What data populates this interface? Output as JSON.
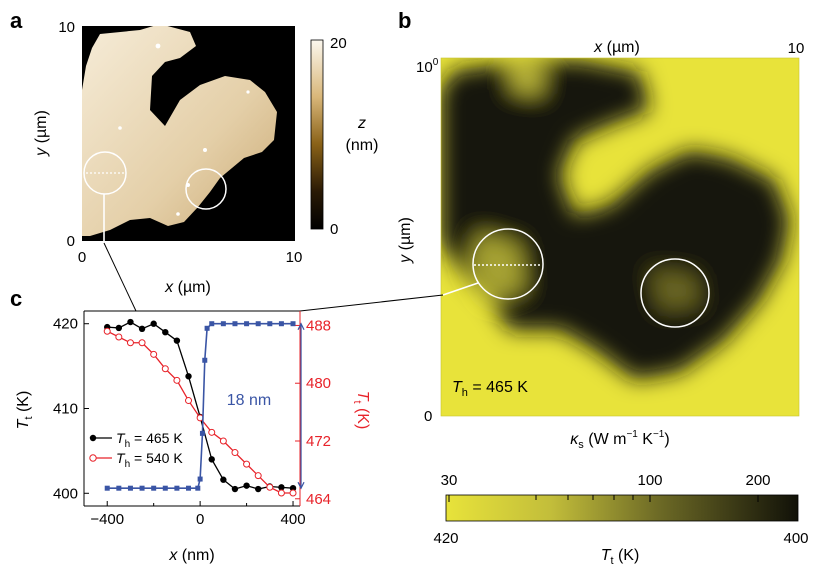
{
  "panel_a": {
    "label": "a",
    "x_ticks": [
      "0",
      "10"
    ],
    "y_ticks": [
      "0",
      "10"
    ],
    "x_axis_var": "x",
    "x_axis_unit": "(µm)",
    "y_axis_var": "y",
    "y_axis_unit": "(µm)",
    "colorbar_ticks": [
      "20",
      "0"
    ],
    "colorbar_var": "z",
    "colorbar_unit": "(nm)"
  },
  "panel_b": {
    "label": "b",
    "x_axis_var": "x",
    "x_axis_unit": "(µm)",
    "x_tick_right": "10",
    "y_tick_top_base": "10",
    "y_tick_top_exp": "0",
    "y_tick_bottom": "0",
    "y_axis_var": "y",
    "y_axis_unit": "(µm)",
    "annotation_var": "T",
    "annotation_sub": "h",
    "annotation_value": " = 465 K",
    "kappa_var": "κ",
    "kappa_sub": "s",
    "kappa_unit": "(W m",
    "kappa_unit_exp1": "−1",
    "kappa_unit_mid": " K",
    "kappa_unit_exp2": "−1",
    "kappa_unit_end": ")",
    "kappa_ticks": [
      "30",
      "100",
      "200"
    ],
    "tt_ticks": [
      "420",
      "400"
    ],
    "tt_var": "T",
    "tt_sub": "t",
    "tt_unit": " (K)",
    "colors": {
      "high": "#e8e33a",
      "low": "#111108"
    }
  },
  "panel_c": {
    "label": "c",
    "step_annotation": "18 nm",
    "left_axis_var": "T",
    "left_axis_sub": "t",
    "left_axis_unit": " (K)",
    "right_axis_var": "T",
    "right_axis_sub": "t",
    "right_axis_unit": " (K)",
    "x_axis_var": "x",
    "x_axis_unit": " (nm)",
    "legend": [
      {
        "var": "T",
        "sub": "h",
        "value": " = 465 K",
        "color": "#000000"
      },
      {
        "var": "T",
        "sub": "h",
        "value": " = 540 K",
        "color": "#e8232a"
      }
    ]
  },
  "chart_data": {
    "type": "line",
    "x": [
      -400,
      -350,
      -300,
      -250,
      -200,
      -150,
      -100,
      -50,
      0,
      50,
      100,
      150,
      200,
      250,
      300,
      350,
      400
    ],
    "xlim": [
      -500,
      430
    ],
    "x_ticks": [
      "−400",
      "0",
      "400"
    ],
    "ylim": [
      398.5,
      421.5
    ],
    "y_ticks": [
      "400",
      "410",
      "420"
    ],
    "y2lim": [
      463,
      490
    ],
    "y2_ticks": [
      "464",
      "472",
      "480",
      "488"
    ],
    "xlabel": "x (nm)",
    "ylabel": "Tt (K)",
    "y2label": "Tt (K)",
    "series": [
      {
        "name": "Th = 465 K",
        "axis": "left",
        "color": "#000000",
        "marker": "circle-filled",
        "values": [
          419.6,
          419.5,
          420.2,
          419.4,
          420.0,
          419.0,
          418.0,
          413.8,
          409.0,
          404.0,
          401.6,
          400.5,
          400.9,
          400.5,
          400.8,
          400.7,
          400.6
        ]
      },
      {
        "name": "Th = 540 K",
        "axis": "right",
        "color": "#e8232a",
        "marker": "circle-open",
        "values": [
          487.2,
          486.4,
          485.6,
          485.6,
          484.0,
          482.0,
          480.4,
          477.6,
          475.2,
          473.2,
          472.0,
          470.4,
          468.8,
          467.2,
          465.6,
          464.8,
          464.8
        ]
      },
      {
        "name": "",
        "axis": "topography",
        "color": "#3a55a5",
        "marker": "square-filled",
        "x": [
          -400,
          -350,
          -300,
          -250,
          -200,
          -150,
          -100,
          -50,
          -10,
          0,
          10,
          20,
          30,
          50,
          100,
          150,
          200,
          250,
          300,
          350,
          400
        ],
        "values": [
          0,
          0,
          0,
          0,
          0,
          0,
          0,
          0,
          0,
          1,
          6,
          14,
          17.5,
          18,
          18,
          18,
          18,
          18,
          18,
          18,
          18
        ]
      }
    ]
  }
}
